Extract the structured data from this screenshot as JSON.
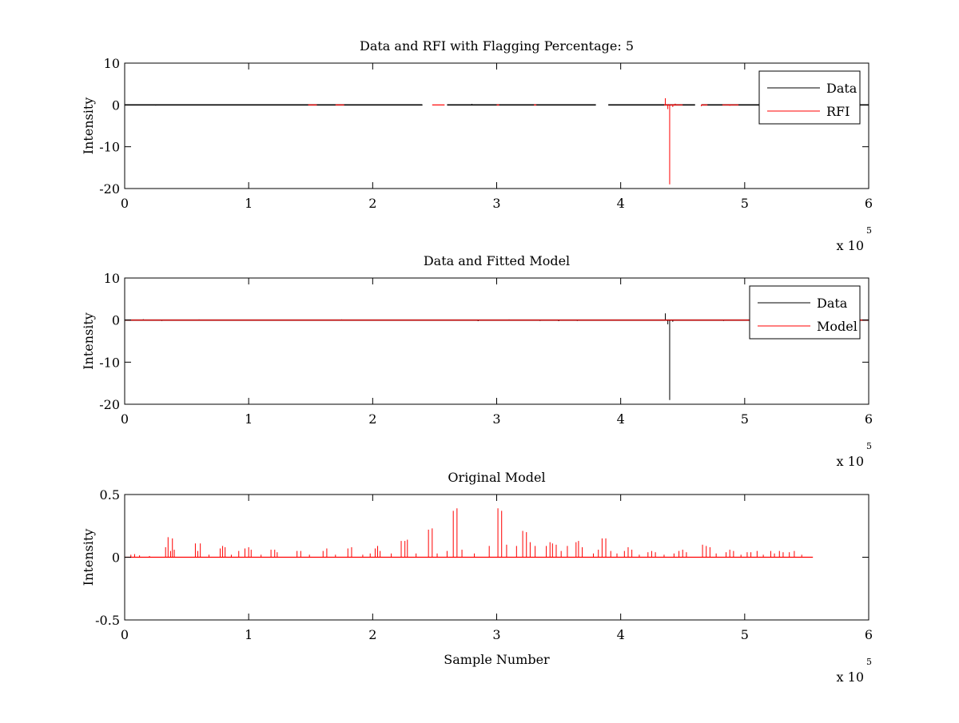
{
  "figure": {
    "background": "#ffffff",
    "colors": {
      "data": "#000000",
      "rfi": "#ff0000",
      "model": "#ff0000",
      "axes": "#000000"
    }
  },
  "chart_data": [
    {
      "type": "line",
      "title": "Data and RFI with Flagging Percentage: 5",
      "xlabel": "",
      "ylabel": "Intensity",
      "xlim": [
        0,
        600000
      ],
      "ylim": [
        -20,
        10
      ],
      "xticks": [
        0,
        1,
        2,
        3,
        4,
        5,
        6
      ],
      "yticks": [
        10,
        0,
        -10,
        -20
      ],
      "x_multiplier": {
        "base": "x 10",
        "exponent": "5"
      },
      "legend": {
        "placement": "top-right",
        "entries": [
          "Data",
          "RFI"
        ]
      },
      "series": [
        {
          "name": "Data",
          "color": "#000000",
          "baseline_ranges": [
            [
              0,
              240000
            ],
            [
              260000,
              380000
            ],
            [
              390000,
              460000
            ],
            [
              465000,
              600000
            ]
          ],
          "spikes": [
            [
              10000,
              0.1
            ],
            [
              25000,
              -0.15
            ],
            [
              55000,
              0.15
            ],
            [
              120000,
              -0.1
            ],
            [
              180000,
              0.12
            ],
            [
              240000,
              -0.1
            ],
            [
              280000,
              0.25
            ],
            [
              300000,
              -0.12
            ],
            [
              330000,
              0.1
            ],
            [
              345000,
              -0.1
            ],
            [
              370000,
              0.12
            ],
            [
              410000,
              -0.12
            ],
            [
              500000,
              0.1
            ],
            [
              550000,
              -0.1
            ]
          ]
        },
        {
          "name": "RFI",
          "color": "#ff0000",
          "baseline_ranges": [
            [
              148000,
              155000
            ],
            [
              170000,
              177000
            ],
            [
              248000,
              258000
            ],
            [
              300000,
              302000
            ],
            [
              330000,
              332000
            ],
            [
              435000,
              450000
            ],
            [
              465000,
              470000
            ],
            [
              482000,
              495000
            ]
          ],
          "spikes": [
            [
              436000,
              1.6
            ],
            [
              438000,
              -1.0
            ],
            [
              439500,
              -19.0
            ],
            [
              442000,
              -0.5
            ],
            [
              444000,
              0.3
            ],
            [
              465000,
              -0.3
            ],
            [
              488000,
              -0.2
            ]
          ]
        }
      ]
    },
    {
      "type": "line",
      "title": "Data and Fitted Model",
      "xlabel": "",
      "ylabel": "Intensity",
      "xlim": [
        0,
        600000
      ],
      "ylim": [
        -20,
        10
      ],
      "xticks": [
        0,
        1,
        2,
        3,
        4,
        5,
        6
      ],
      "yticks": [
        10,
        0,
        -10,
        -20
      ],
      "x_multiplier": {
        "base": "x 10",
        "exponent": "5"
      },
      "legend": {
        "placement": "top-right",
        "entries": [
          "Data",
          "Model"
        ]
      },
      "series": [
        {
          "name": "Data",
          "color": "#000000",
          "baseline_ranges": [
            [
              0,
              600000
            ]
          ],
          "spikes": [
            [
              15000,
              0.2
            ],
            [
              30000,
              -0.2
            ],
            [
              60000,
              0.15
            ],
            [
              130000,
              -0.15
            ],
            [
              175000,
              0.15
            ],
            [
              245000,
              -0.1
            ],
            [
              285000,
              -0.25
            ],
            [
              310000,
              0.15
            ],
            [
              335000,
              -0.2
            ],
            [
              350000,
              -0.25
            ],
            [
              365000,
              -0.2
            ],
            [
              436000,
              1.6
            ],
            [
              438000,
              -1.0
            ],
            [
              439500,
              -19.0
            ],
            [
              442000,
              -0.4
            ],
            [
              483000,
              -0.2
            ]
          ]
        },
        {
          "name": "Model",
          "color": "#ff0000",
          "baseline_ranges": [
            [
              0,
              600000
            ]
          ],
          "spikes": []
        }
      ]
    },
    {
      "type": "line",
      "title": "Original Model",
      "xlabel": "Sample Number",
      "ylabel": "Intensity",
      "xlim": [
        0,
        600000
      ],
      "ylim": [
        -0.5,
        0.5
      ],
      "xticks": [
        0,
        1,
        2,
        3,
        4,
        5,
        6
      ],
      "yticks": [
        0.5,
        0,
        -0.5
      ],
      "x_multiplier": {
        "base": "x 10",
        "exponent": "5"
      },
      "legend": null,
      "series": [
        {
          "name": "",
          "color": "#ff0000",
          "baseline_ranges": [
            [
              0,
              555000
            ]
          ],
          "spikes": [
            [
              5000,
              0.02
            ],
            [
              8000,
              0.025
            ],
            [
              12000,
              0.015
            ],
            [
              20000,
              0.01
            ],
            [
              33000,
              0.08
            ],
            [
              35000,
              0.16
            ],
            [
              37000,
              0.05
            ],
            [
              38500,
              0.15
            ],
            [
              40000,
              0.06
            ],
            [
              57000,
              0.11
            ],
            [
              59000,
              0.05
            ],
            [
              61000,
              0.11
            ],
            [
              68000,
              0.02
            ],
            [
              77000,
              0.07
            ],
            [
              79000,
              0.09
            ],
            [
              81000,
              0.08
            ],
            [
              86000,
              0.02
            ],
            [
              92000,
              0.05
            ],
            [
              97000,
              0.07
            ],
            [
              100000,
              0.08
            ],
            [
              102000,
              0.06
            ],
            [
              110000,
              0.02
            ],
            [
              118000,
              0.06
            ],
            [
              121000,
              0.06
            ],
            [
              123000,
              0.04
            ],
            [
              139000,
              0.05
            ],
            [
              142000,
              0.05
            ],
            [
              149000,
              0.02
            ],
            [
              160000,
              0.05
            ],
            [
              163000,
              0.07
            ],
            [
              170000,
              0.02
            ],
            [
              180000,
              0.07
            ],
            [
              183000,
              0.08
            ],
            [
              192000,
              0.02
            ],
            [
              198000,
              0.03
            ],
            [
              202000,
              0.07
            ],
            [
              204000,
              0.09
            ],
            [
              206000,
              0.05
            ],
            [
              215000,
              0.03
            ],
            [
              223000,
              0.13
            ],
            [
              226000,
              0.13
            ],
            [
              228000,
              0.14
            ],
            [
              235000,
              0.03
            ],
            [
              245000,
              0.22
            ],
            [
              248000,
              0.23
            ],
            [
              252000,
              0.03
            ],
            [
              260000,
              0.05
            ],
            [
              265000,
              0.37
            ],
            [
              268000,
              0.39
            ],
            [
              272000,
              0.06
            ],
            [
              282000,
              0.03
            ],
            [
              294000,
              0.09
            ],
            [
              301000,
              0.39
            ],
            [
              304000,
              0.37
            ],
            [
              308000,
              0.1
            ],
            [
              316000,
              0.09
            ],
            [
              321000,
              0.21
            ],
            [
              324000,
              0.2
            ],
            [
              327000,
              0.12
            ],
            [
              331000,
              0.09
            ],
            [
              340000,
              0.09
            ],
            [
              343000,
              0.12
            ],
            [
              345000,
              0.11
            ],
            [
              348000,
              0.1
            ],
            [
              352000,
              0.05
            ],
            [
              357000,
              0.09
            ],
            [
              364000,
              0.12
            ],
            [
              366000,
              0.13
            ],
            [
              369000,
              0.08
            ],
            [
              378000,
              0.03
            ],
            [
              382000,
              0.06
            ],
            [
              385000,
              0.15
            ],
            [
              388000,
              0.15
            ],
            [
              392000,
              0.05
            ],
            [
              397000,
              0.03
            ],
            [
              403000,
              0.05
            ],
            [
              406000,
              0.08
            ],
            [
              409000,
              0.06
            ],
            [
              415000,
              0.02
            ],
            [
              422000,
              0.04
            ],
            [
              425000,
              0.05
            ],
            [
              428000,
              0.04
            ],
            [
              435000,
              0.02
            ],
            [
              443000,
              0.03
            ],
            [
              447000,
              0.05
            ],
            [
              450000,
              0.06
            ],
            [
              453000,
              0.04
            ],
            [
              466000,
              0.1
            ],
            [
              469000,
              0.09
            ],
            [
              472000,
              0.08
            ],
            [
              477000,
              0.03
            ],
            [
              485000,
              0.04
            ],
            [
              488000,
              0.06
            ],
            [
              491000,
              0.05
            ],
            [
              497000,
              0.02
            ],
            [
              502000,
              0.04
            ],
            [
              505000,
              0.04
            ],
            [
              510000,
              0.05
            ],
            [
              515000,
              0.02
            ],
            [
              521000,
              0.05
            ],
            [
              524000,
              0.03
            ],
            [
              528000,
              0.05
            ],
            [
              531000,
              0.04
            ],
            [
              536000,
              0.04
            ],
            [
              540000,
              0.05
            ],
            [
              546000,
              0.02
            ]
          ]
        }
      ]
    }
  ]
}
